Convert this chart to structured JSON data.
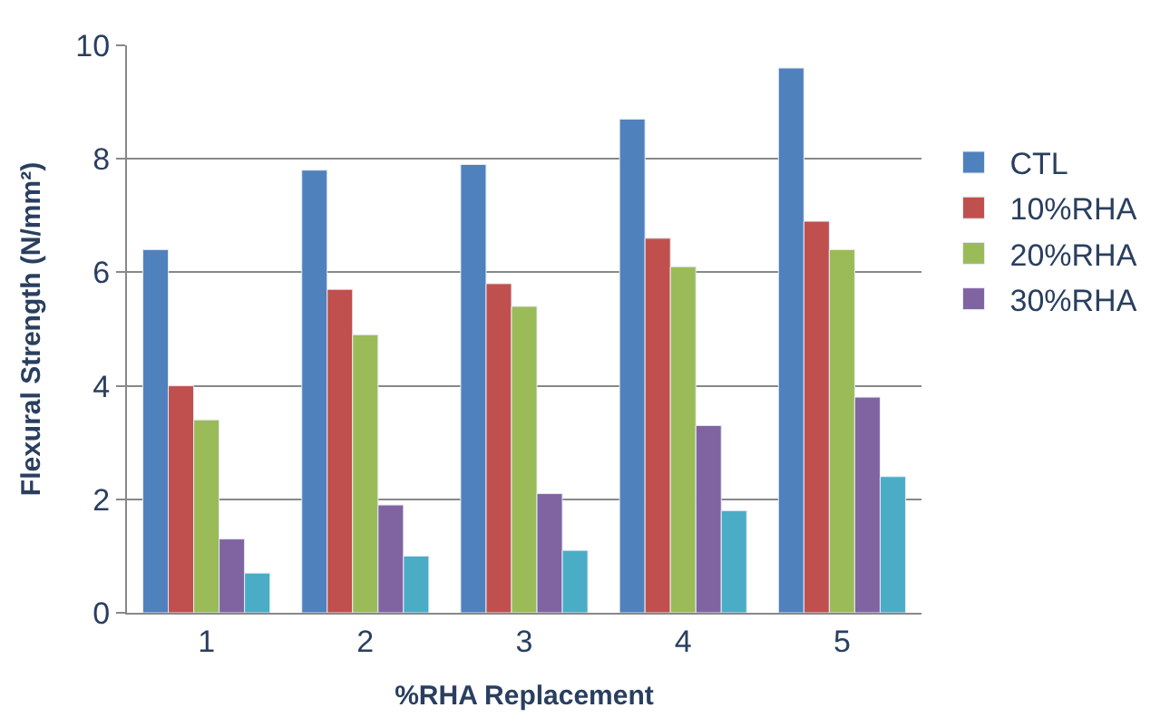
{
  "chart_data": {
    "type": "bar",
    "xlabel": "%RHA Replacement",
    "ylabel": "Flexural Strength (N/mm²)",
    "categories": [
      "1",
      "2",
      "3",
      "4",
      "5"
    ],
    "series": [
      {
        "name": "CTL",
        "color": "#4f81bd",
        "values": [
          6.4,
          7.8,
          7.9,
          8.7,
          9.6
        ]
      },
      {
        "name": "10%RHA",
        "color": "#c0504d",
        "values": [
          4.0,
          5.7,
          5.8,
          6.6,
          6.9
        ]
      },
      {
        "name": "20%RHA",
        "color": "#9bbb59",
        "values": [
          3.4,
          4.9,
          5.4,
          6.1,
          6.4
        ]
      },
      {
        "name": "30%RHA",
        "color": "#8064a2",
        "values": [
          1.3,
          1.9,
          2.1,
          3.3,
          3.8
        ]
      },
      {
        "color": "#4bacc6",
        "values": [
          0.7,
          1.0,
          1.1,
          1.8,
          2.4
        ]
      }
    ],
    "ylim": [
      0,
      10
    ],
    "yticks": [
      0,
      2,
      4,
      6,
      8,
      10
    ],
    "grid": "y",
    "legend": "right"
  }
}
